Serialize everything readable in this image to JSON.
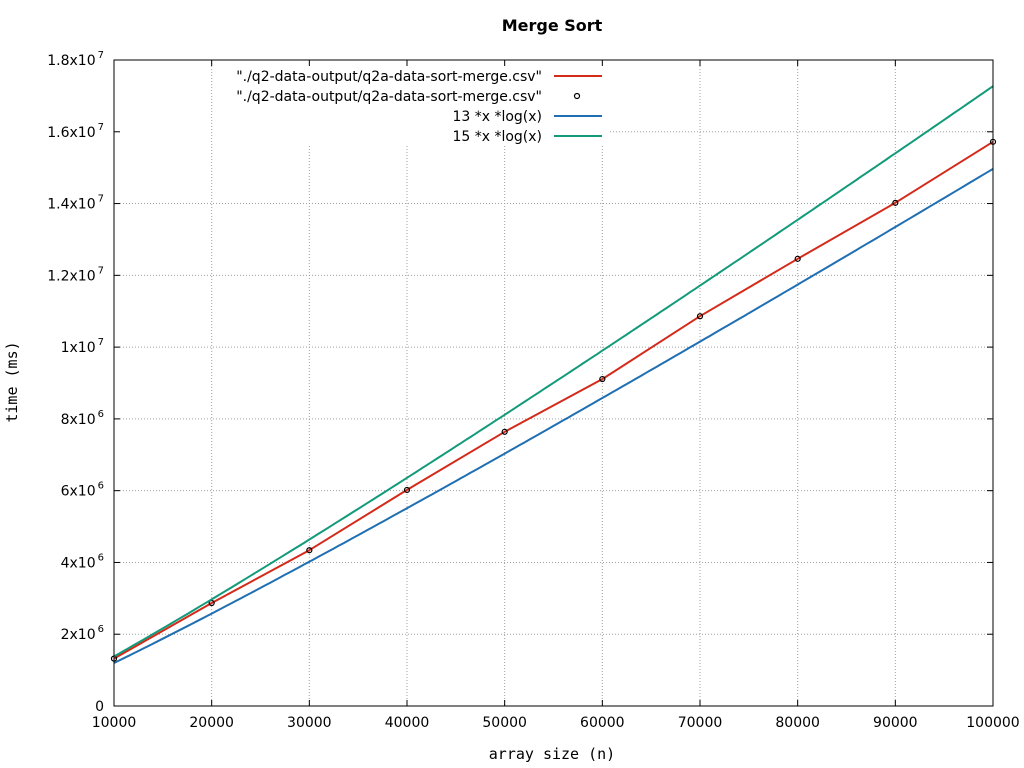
{
  "chart_data": {
    "type": "line",
    "title": "Merge Sort",
    "xlabel": "array size (n)",
    "ylabel": "time (ms)",
    "xlim": [
      10000,
      100000
    ],
    "ylim": [
      0,
      18000000
    ],
    "grid": true,
    "legend_position": "top-left",
    "x_ticks": [
      "10000",
      "20000",
      "30000",
      "40000",
      "50000",
      "60000",
      "70000",
      "80000",
      "90000",
      "100000"
    ],
    "y_ticks": [
      {
        "value": 0,
        "mantissa": "0",
        "exponent": ""
      },
      {
        "value": 2000000,
        "mantissa": "2x10",
        "exponent": "6"
      },
      {
        "value": 4000000,
        "mantissa": "4x10",
        "exponent": "6"
      },
      {
        "value": 6000000,
        "mantissa": "6x10",
        "exponent": "6"
      },
      {
        "value": 8000000,
        "mantissa": "8x10",
        "exponent": "6"
      },
      {
        "value": 10000000,
        "mantissa": "1x10",
        "exponent": "7"
      },
      {
        "value": 12000000,
        "mantissa": "1.2x10",
        "exponent": "7"
      },
      {
        "value": 14000000,
        "mantissa": "1.4x10",
        "exponent": "7"
      },
      {
        "value": 16000000,
        "mantissa": "1.6x10",
        "exponent": "7"
      },
      {
        "value": 18000000,
        "mantissa": "1.8x10",
        "exponent": "7"
      }
    ],
    "series": [
      {
        "name": "\"./q2-data-output/q2a-data-sort-merge.csv\"",
        "style": "line",
        "color": "#d42a1a",
        "x": [
          10000,
          20000,
          30000,
          40000,
          50000,
          60000,
          70000,
          80000,
          90000,
          100000
        ],
        "values": [
          1320000,
          2870000,
          4340000,
          6020000,
          7640000,
          9110000,
          10860000,
          12460000,
          14020000,
          15720000
        ]
      },
      {
        "name": "\"./q2-data-output/q2a-data-sort-merge.csv\"",
        "style": "points",
        "color": "#000000",
        "x": [
          10000,
          20000,
          30000,
          40000,
          50000,
          60000,
          70000,
          80000,
          90000,
          100000
        ],
        "values": [
          1320000,
          2870000,
          4340000,
          6020000,
          7640000,
          9110000,
          10860000,
          12460000,
          14020000,
          15720000
        ]
      },
      {
        "name": "13 *x *log(x)",
        "style": "function",
        "color": "#1f6fb2",
        "coefficient": 13
      },
      {
        "name": "15 *x *log(x)",
        "style": "function",
        "color": "#129a7a",
        "coefficient": 15
      }
    ]
  }
}
